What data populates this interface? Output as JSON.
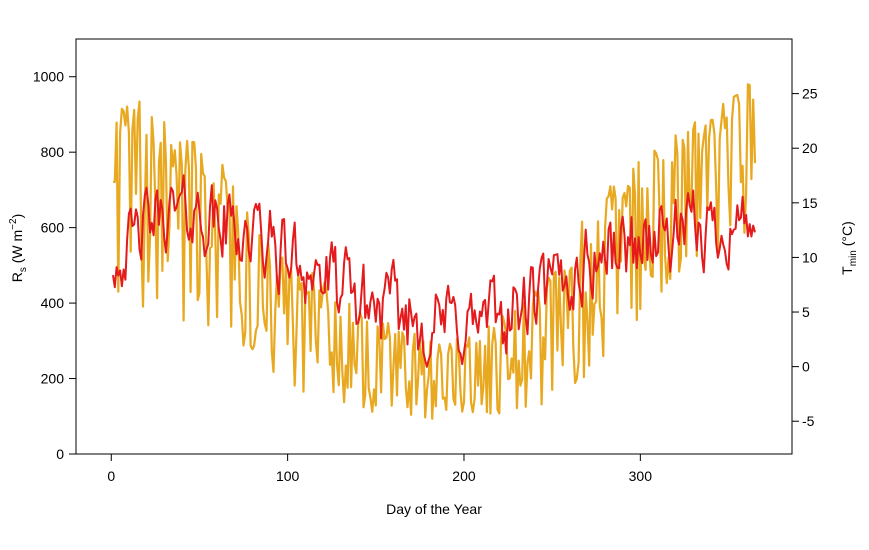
{
  "chart_data": {
    "type": "line",
    "xlabel": "Day of the Year",
    "ylabel_left": {
      "base": "R",
      "sub": "s",
      "unit_prefix": " (W m",
      "sup": "−2",
      "unit_suffix": ")"
    },
    "ylabel_right": {
      "base": "T",
      "sub": "min",
      "unit": " (°C)"
    },
    "xlim": [
      -20,
      386
    ],
    "ylim_left": [
      0,
      1100
    ],
    "ylim_right": [
      -8,
      30
    ],
    "x_ticks": [
      0,
      100,
      200,
      300
    ],
    "y_left_ticks": [
      0,
      200,
      400,
      600,
      800,
      1000
    ],
    "y_right_ticks": [
      -5,
      0,
      5,
      10,
      15,
      20,
      25
    ],
    "grid": false,
    "legend": "none",
    "series": [
      {
        "axis": "left",
        "color": "#E8A820",
        "anchor_x": [
          1,
          10,
          20,
          30,
          40,
          50,
          60,
          70,
          80,
          90,
          100,
          110,
          120,
          130,
          140,
          150,
          160,
          170,
          180,
          190,
          200,
          210,
          220,
          230,
          240,
          250,
          260,
          270,
          280,
          290,
          300,
          310,
          320,
          330,
          340,
          350,
          360,
          365
        ],
        "anchor_y": [
          1010,
          980,
          930,
          880,
          860,
          850,
          800,
          700,
          640,
          570,
          530,
          500,
          460,
          420,
          390,
          370,
          350,
          330,
          310,
          300,
          310,
          330,
          360,
          390,
          440,
          490,
          560,
          640,
          700,
          750,
          790,
          830,
          860,
          880,
          910,
          950,
          990,
          1000
        ],
        "anchor_low": [
          430,
          380,
          360,
          360,
          340,
          330,
          310,
          290,
          260,
          210,
          190,
          160,
          130,
          110,
          100,
          100,
          100,
          100,
          90,
          90,
          90,
          90,
          90,
          100,
          110,
          130,
          160,
          200,
          240,
          300,
          360,
          410,
          450,
          490,
          520,
          560,
          580,
          600
        ]
      },
      {
        "axis": "right",
        "color": "#E41A1C",
        "anchor_x": [
          1,
          10,
          20,
          30,
          40,
          50,
          60,
          70,
          80,
          90,
          100,
          110,
          120,
          130,
          140,
          150,
          160,
          170,
          180,
          190,
          200,
          210,
          220,
          230,
          240,
          250,
          260,
          270,
          280,
          290,
          300,
          310,
          320,
          330,
          340,
          350,
          360,
          365
        ],
        "anchor_y": [
          9.5,
          11,
          13,
          14,
          14,
          14,
          13,
          13,
          12,
          11,
          10,
          9.5,
          8,
          7,
          6,
          5.5,
          5,
          4.5,
          4,
          4,
          4,
          4,
          4.5,
          5,
          6,
          7,
          8,
          9.5,
          10.5,
          11,
          11.5,
          12,
          12,
          12,
          12.5,
          13,
          13.5,
          14
        ],
        "anchor_amp": [
          2.5,
          3,
          3,
          3,
          3,
          3,
          3.5,
          3.5,
          3.5,
          3.5,
          3.5,
          3.5,
          3.5,
          3.5,
          3.5,
          3.5,
          3.5,
          3.5,
          3.5,
          3.5,
          3.5,
          3.5,
          3.5,
          3.5,
          3.5,
          3.5,
          3.5,
          3.5,
          3.5,
          3.5,
          3.5,
          3.5,
          3.5,
          3.5,
          3.5,
          3,
          3,
          3
        ]
      }
    ]
  }
}
